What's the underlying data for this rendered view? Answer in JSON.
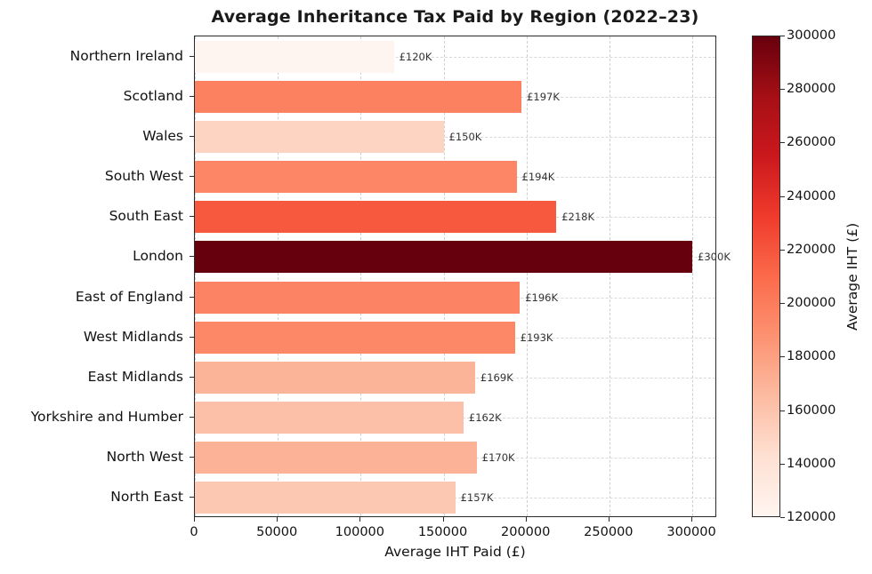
{
  "chart_data": {
    "type": "bar",
    "orientation": "horizontal",
    "title": "Average Inheritance Tax Paid by Region (2022–23)",
    "xlabel": "Average IHT Paid (£)",
    "ylabel": "",
    "categories": [
      "Northern Ireland",
      "Scotland",
      "Wales",
      "South West",
      "South East",
      "London",
      "East of England",
      "West Midlands",
      "East Midlands",
      "Yorkshire and Humber",
      "North West",
      "North East"
    ],
    "values": [
      120000,
      197000,
      150000,
      194000,
      218000,
      300000,
      196000,
      193000,
      169000,
      162000,
      170000,
      157000
    ],
    "labels": [
      "£120K",
      "£197K",
      "£150K",
      "£194K",
      "£218K",
      "£300K",
      "£196K",
      "£193K",
      "£169K",
      "£162K",
      "£170K",
      "£157K"
    ],
    "bar_colors": [
      "#fff5f0",
      "#fc8161",
      "#fdd4c2",
      "#fc8666",
      "#f7593f",
      "#67000d",
      "#fc8363",
      "#fc8868",
      "#fcb499",
      "#fcc0a8",
      "#fcb297",
      "#fdc8b2"
    ],
    "xlim": [
      0,
      315000
    ],
    "xticks": [
      0,
      50000,
      100000,
      150000,
      200000,
      250000,
      300000
    ],
    "xtick_labels": [
      "0",
      "50000",
      "100000",
      "150000",
      "200000",
      "250000",
      "300000"
    ],
    "grid": true,
    "grid_style": "dashed",
    "bar_height_fraction": 0.8,
    "colorbar": {
      "label": "Average IHT (£)",
      "min": 120000,
      "max": 300000,
      "ticks": [
        120000,
        140000,
        160000,
        180000,
        200000,
        220000,
        240000,
        260000,
        280000,
        300000
      ],
      "tick_labels": [
        "120000",
        "140000",
        "160000",
        "180000",
        "200000",
        "220000",
        "240000",
        "260000",
        "280000",
        "300000"
      ],
      "gradient_stops": [
        "#fff5f0",
        "#fee0d2",
        "#fcbba1",
        "#fc9272",
        "#fb6a4a",
        "#ef3b2c",
        "#cb181d",
        "#a50f15",
        "#67000d"
      ]
    }
  }
}
